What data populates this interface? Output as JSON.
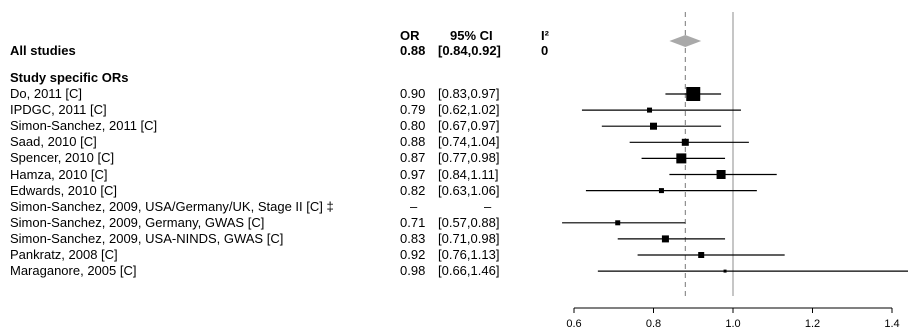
{
  "chart_data": {
    "type": "forest",
    "headers": {
      "or": "OR",
      "ci": "95% CI",
      "i2": "I²"
    },
    "summary": {
      "label": "All studies",
      "or": "0.88",
      "ci": "[0.84,0.92]",
      "i2": "0",
      "or_value": 0.88,
      "ci_low": 0.84,
      "ci_high": 0.92
    },
    "section_title": "Study specific ORs",
    "studies": [
      {
        "label": "Do, 2011 [C]",
        "or": "0.90",
        "ci": "[0.83,0.97]",
        "or_value": 0.9,
        "ci_low": 0.83,
        "ci_high": 0.97,
        "weight": 14
      },
      {
        "label": "IPDGC, 2011 [C]",
        "or": "0.79",
        "ci": "[0.62,1.02]",
        "or_value": 0.79,
        "ci_low": 0.62,
        "ci_high": 1.02,
        "weight": 5
      },
      {
        "label": "Simon-Sanchez, 2011 [C]",
        "or": "0.80",
        "ci": "[0.67,0.97]",
        "or_value": 0.8,
        "ci_low": 0.67,
        "ci_high": 0.97,
        "weight": 7
      },
      {
        "label": "Saad, 2010 [C]",
        "or": "0.88",
        "ci": "[0.74,1.04]",
        "or_value": 0.88,
        "ci_low": 0.74,
        "ci_high": 1.04,
        "weight": 7
      },
      {
        "label": "Spencer, 2010 [C]",
        "or": "0.87",
        "ci": "[0.77,0.98]",
        "or_value": 0.87,
        "ci_low": 0.77,
        "ci_high": 0.98,
        "weight": 10
      },
      {
        "label": "Hamza, 2010 [C]",
        "or": "0.97",
        "ci": "[0.84,1.11]",
        "or_value": 0.97,
        "ci_low": 0.84,
        "ci_high": 1.11,
        "weight": 9
      },
      {
        "label": "Edwards, 2010 [C]",
        "or": "0.82",
        "ci": "[0.63,1.06]",
        "or_value": 0.82,
        "ci_low": 0.63,
        "ci_high": 1.06,
        "weight": 5
      },
      {
        "label": "Simon-Sanchez, 2009, USA/Germany/UK, Stage II [C] ‡",
        "or": "–",
        "ci": "–",
        "or_value": null,
        "ci_low": null,
        "ci_high": null,
        "weight": 0
      },
      {
        "label": "Simon-Sanchez, 2009, Germany, GWAS [C]",
        "or": "0.71",
        "ci": "[0.57,0.88]",
        "or_value": 0.71,
        "ci_low": 0.57,
        "ci_high": 0.88,
        "weight": 5
      },
      {
        "label": "Simon-Sanchez, 2009, USA-NINDS, GWAS [C]",
        "or": "0.83",
        "ci": "[0.71,0.98]",
        "or_value": 0.83,
        "ci_low": 0.71,
        "ci_high": 0.98,
        "weight": 7
      },
      {
        "label": "Pankratz, 2008 [C]",
        "or": "0.92",
        "ci": "[0.76,1.13]",
        "or_value": 0.92,
        "ci_low": 0.76,
        "ci_high": 1.13,
        "weight": 6
      },
      {
        "label": "Maraganore, 2005 [C]",
        "or": "0.98",
        "ci": "[0.66,1.46]",
        "or_value": 0.98,
        "ci_low": 0.66,
        "ci_high": 1.46,
        "weight": 3
      }
    ],
    "x_ticks": [
      0.6,
      0.8,
      1.0,
      1.2,
      1.4
    ],
    "x_tick_labels": [
      "0.6",
      "0.8",
      "1.0",
      "1.2",
      "1.4"
    ],
    "xlim": [
      0.6,
      1.4
    ],
    "reference_line": 1.0,
    "summary_line": 0.88,
    "colors": {
      "summary_diamond": "#a9a9a9",
      "reference_line": "#a0a0a0",
      "summary_line": "#777777",
      "marker": "#000000"
    }
  }
}
